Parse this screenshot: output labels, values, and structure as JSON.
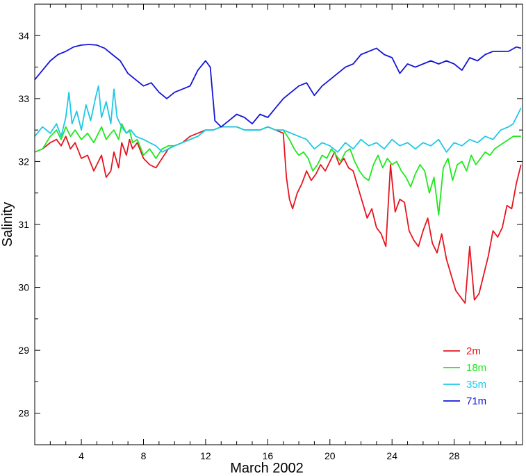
{
  "chart_data": {
    "type": "line",
    "title": "",
    "xlabel": "March 2002",
    "ylabel": "Salinity",
    "xlim": [
      1,
      32.4
    ],
    "ylim": [
      27.5,
      34.5
    ],
    "xticks": [
      4,
      8,
      12,
      16,
      20,
      24,
      28
    ],
    "yticks": [
      28,
      29,
      30,
      31,
      32,
      33,
      34
    ],
    "grid": false,
    "legend_position": "bottom-right",
    "series": [
      {
        "name": "2m",
        "color": "#e8141e",
        "x": [
          1.0,
          1.5,
          2.0,
          2.4,
          2.7,
          3.0,
          3.3,
          3.6,
          4.0,
          4.4,
          4.8,
          5.0,
          5.3,
          5.6,
          5.9,
          6.1,
          6.4,
          6.6,
          6.9,
          7.1,
          7.3,
          7.6,
          8.0,
          8.4,
          8.8,
          9.2,
          9.6,
          10.0,
          10.5,
          11.0,
          11.5,
          12.0,
          12.5,
          13.0,
          13.5,
          14.0,
          14.5,
          15.0,
          15.5,
          16.0,
          16.5,
          17.0,
          17.2,
          17.4,
          17.6,
          17.9,
          18.2,
          18.5,
          18.8,
          19.1,
          19.4,
          19.7,
          20.0,
          20.3,
          20.6,
          20.9,
          21.2,
          21.5,
          21.8,
          22.1,
          22.4,
          22.7,
          23.0,
          23.3,
          23.6,
          23.9,
          24.2,
          24.5,
          24.8,
          25.1,
          25.4,
          25.7,
          26.0,
          26.3,
          26.6,
          26.9,
          27.2,
          27.5,
          27.8,
          28.1,
          28.4,
          28.7,
          29.0,
          29.3,
          29.6,
          29.9,
          30.2,
          30.5,
          30.8,
          31.1,
          31.4,
          31.7,
          32.0,
          32.3
        ],
        "y": [
          32.15,
          32.2,
          32.3,
          32.35,
          32.25,
          32.4,
          32.2,
          32.3,
          32.05,
          32.1,
          31.85,
          31.95,
          32.1,
          31.75,
          31.85,
          32.15,
          31.9,
          32.3,
          32.1,
          32.35,
          32.2,
          32.3,
          32.05,
          31.95,
          31.9,
          32.05,
          32.2,
          32.25,
          32.3,
          32.4,
          32.45,
          32.5,
          32.5,
          32.55,
          32.55,
          32.55,
          32.5,
          32.5,
          32.5,
          32.55,
          32.5,
          32.45,
          31.75,
          31.4,
          31.25,
          31.5,
          31.65,
          31.85,
          31.7,
          31.8,
          31.95,
          31.85,
          32.0,
          32.15,
          31.95,
          32.05,
          31.9,
          31.85,
          31.6,
          31.35,
          31.1,
          31.25,
          30.95,
          30.85,
          30.65,
          31.95,
          31.2,
          31.4,
          31.35,
          30.9,
          30.75,
          30.65,
          30.9,
          31.1,
          30.7,
          30.55,
          30.85,
          30.45,
          30.2,
          29.95,
          29.85,
          29.75,
          30.65,
          29.8,
          29.9,
          30.2,
          30.5,
          30.9,
          30.8,
          30.95,
          31.3,
          31.25,
          31.65,
          31.95
        ]
      },
      {
        "name": "18m",
        "color": "#1ee81e",
        "x": [
          1.0,
          1.5,
          2.0,
          2.4,
          2.7,
          3.0,
          3.3,
          3.6,
          4.0,
          4.4,
          4.8,
          5.0,
          5.3,
          5.6,
          5.9,
          6.1,
          6.4,
          6.6,
          6.9,
          7.1,
          7.3,
          7.6,
          8.0,
          8.4,
          8.8,
          9.2,
          9.6,
          10.0,
          10.5,
          11.0,
          11.5,
          12.0,
          12.5,
          13.0,
          13.5,
          14.0,
          14.5,
          15.0,
          15.5,
          16.0,
          16.5,
          17.0,
          17.4,
          17.7,
          18.0,
          18.3,
          18.6,
          18.9,
          19.2,
          19.5,
          19.8,
          20.1,
          20.4,
          20.7,
          21.0,
          21.3,
          21.6,
          21.9,
          22.2,
          22.5,
          22.8,
          23.1,
          23.4,
          23.7,
          24.0,
          24.3,
          24.6,
          24.9,
          25.2,
          25.5,
          25.8,
          26.1,
          26.4,
          26.7,
          27.0,
          27.3,
          27.6,
          27.9,
          28.2,
          28.5,
          28.8,
          29.1,
          29.4,
          29.7,
          30.0,
          30.3,
          30.6,
          30.9,
          31.2,
          31.5,
          31.8,
          32.1,
          32.3
        ],
        "y": [
          32.15,
          32.2,
          32.4,
          32.5,
          32.35,
          32.55,
          32.4,
          32.5,
          32.35,
          32.45,
          32.3,
          32.4,
          32.55,
          32.35,
          32.45,
          32.5,
          32.35,
          32.6,
          32.45,
          32.5,
          32.3,
          32.35,
          32.1,
          32.2,
          32.05,
          32.2,
          32.25,
          32.25,
          32.3,
          32.35,
          32.4,
          32.5,
          32.5,
          32.55,
          32.55,
          32.55,
          32.5,
          32.5,
          32.5,
          32.55,
          32.5,
          32.5,
          32.35,
          32.2,
          32.1,
          32.15,
          32.05,
          31.85,
          31.95,
          32.1,
          32.05,
          32.2,
          32.1,
          32.0,
          32.15,
          32.2,
          32.0,
          31.85,
          31.75,
          31.7,
          31.95,
          32.1,
          31.9,
          32.05,
          31.95,
          32.0,
          31.85,
          31.75,
          31.6,
          31.8,
          31.95,
          31.85,
          31.5,
          31.75,
          31.15,
          31.9,
          32.05,
          31.7,
          31.95,
          32.0,
          31.85,
          32.1,
          31.95,
          32.05,
          32.15,
          32.1,
          32.2,
          32.25,
          32.3,
          32.35,
          32.4,
          32.4,
          32.4
        ]
      },
      {
        "name": "35m",
        "color": "#1ec8e8",
        "x": [
          1.0,
          1.5,
          2.0,
          2.4,
          2.7,
          3.0,
          3.2,
          3.4,
          3.7,
          4.0,
          4.3,
          4.6,
          4.9,
          5.1,
          5.3,
          5.6,
          5.9,
          6.1,
          6.3,
          6.6,
          6.9,
          7.2,
          7.5,
          8.0,
          8.4,
          8.8,
          9.2,
          9.6,
          10.0,
          10.5,
          11.0,
          11.5,
          12.0,
          12.5,
          13.0,
          13.5,
          14.0,
          14.5,
          15.0,
          15.5,
          16.0,
          16.5,
          17.0,
          17.5,
          18.0,
          18.5,
          19.0,
          19.5,
          20.0,
          20.5,
          21.0,
          21.5,
          22.0,
          22.5,
          23.0,
          23.5,
          24.0,
          24.5,
          25.0,
          25.5,
          26.0,
          26.5,
          27.0,
          27.5,
          28.0,
          28.5,
          29.0,
          29.5,
          30.0,
          30.5,
          31.0,
          31.5,
          31.8,
          32.1,
          32.3
        ],
        "y": [
          32.4,
          32.55,
          32.45,
          32.6,
          32.4,
          32.7,
          33.1,
          32.6,
          32.8,
          32.5,
          32.9,
          32.65,
          33.0,
          33.2,
          32.7,
          32.95,
          32.6,
          33.15,
          32.7,
          32.55,
          32.45,
          32.5,
          32.4,
          32.35,
          32.3,
          32.25,
          32.15,
          32.2,
          32.25,
          32.3,
          32.35,
          32.4,
          32.5,
          32.5,
          32.55,
          32.55,
          32.55,
          32.5,
          32.5,
          32.5,
          32.55,
          32.5,
          32.5,
          32.45,
          32.4,
          32.35,
          32.2,
          32.3,
          32.25,
          32.15,
          32.3,
          32.2,
          32.35,
          32.25,
          32.3,
          32.2,
          32.35,
          32.25,
          32.3,
          32.2,
          32.3,
          32.25,
          32.35,
          32.15,
          32.3,
          32.25,
          32.35,
          32.3,
          32.4,
          32.35,
          32.5,
          32.55,
          32.6,
          32.75,
          32.85
        ]
      },
      {
        "name": "71m",
        "color": "#1414d8",
        "x": [
          1.0,
          1.5,
          2.0,
          2.5,
          3.0,
          3.5,
          4.0,
          4.5,
          5.0,
          5.5,
          6.0,
          6.5,
          7.0,
          7.5,
          8.0,
          8.5,
          9.0,
          9.5,
          10.0,
          10.5,
          11.0,
          11.5,
          12.0,
          12.3,
          12.6,
          13.0,
          13.5,
          14.0,
          14.5,
          15.0,
          15.5,
          16.0,
          16.5,
          17.0,
          17.5,
          18.0,
          18.5,
          19.0,
          19.5,
          20.0,
          20.5,
          21.0,
          21.5,
          22.0,
          22.5,
          23.0,
          23.5,
          24.0,
          24.5,
          25.0,
          25.5,
          26.0,
          26.5,
          27.0,
          27.5,
          28.0,
          28.5,
          29.0,
          29.5,
          30.0,
          30.5,
          31.0,
          31.5,
          32.0,
          32.3
        ],
        "y": [
          33.3,
          33.45,
          33.6,
          33.7,
          33.75,
          33.82,
          33.85,
          33.86,
          33.85,
          33.8,
          33.7,
          33.6,
          33.4,
          33.3,
          33.2,
          33.25,
          33.1,
          33.0,
          33.1,
          33.15,
          33.2,
          33.45,
          33.6,
          33.5,
          32.65,
          32.55,
          32.65,
          32.75,
          32.7,
          32.6,
          32.75,
          32.7,
          32.85,
          33.0,
          33.1,
          33.2,
          33.25,
          33.05,
          33.2,
          33.3,
          33.4,
          33.5,
          33.55,
          33.7,
          33.75,
          33.8,
          33.7,
          33.65,
          33.4,
          33.55,
          33.5,
          33.55,
          33.6,
          33.55,
          33.6,
          33.55,
          33.45,
          33.65,
          33.6,
          33.7,
          33.75,
          33.75,
          33.75,
          33.82,
          33.8
        ]
      }
    ]
  }
}
